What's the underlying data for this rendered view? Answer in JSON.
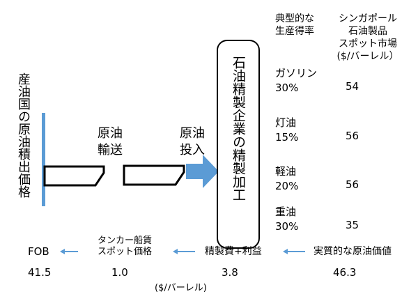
{
  "producer": {
    "label": "産油国の原油積出価格",
    "bar_color": "#5b9bd5"
  },
  "transport": {
    "label_line1": "原油",
    "label_line2": "輸送"
  },
  "input": {
    "label_line1": "原油",
    "label_line2": "投入",
    "arrow_color": "#5b9bd5"
  },
  "refinery": {
    "label": "石油精製企業の精製加工"
  },
  "yield_header": {
    "line1": "典型的な",
    "line2": "生産得率"
  },
  "market_header": {
    "line1": "シンガポール",
    "line2": "石油製品",
    "line3": "スポット市場",
    "line4": "($/バーレル）"
  },
  "products": [
    {
      "name": "ガソリン",
      "yield": "30%",
      "price": "54"
    },
    {
      "name": "灯油",
      "yield": "15%",
      "price": "56"
    },
    {
      "name": "軽油",
      "yield": "20%",
      "price": "56"
    },
    {
      "name": "重油",
      "yield": "30%",
      "price": "35"
    }
  ],
  "bottom": {
    "fob_label": "FOB",
    "fob_value": "41.5",
    "tanker_line1": "タンカー船賃",
    "tanker_line2": "スポット価格",
    "tanker_value": "1.0",
    "refining_label": "精製費+利益",
    "refining_value": "3.8",
    "crude_label": "実質的な原油価値",
    "crude_value": "46.3",
    "unit": "($/バーレル)",
    "arrow_color": "#5b9bd5"
  }
}
